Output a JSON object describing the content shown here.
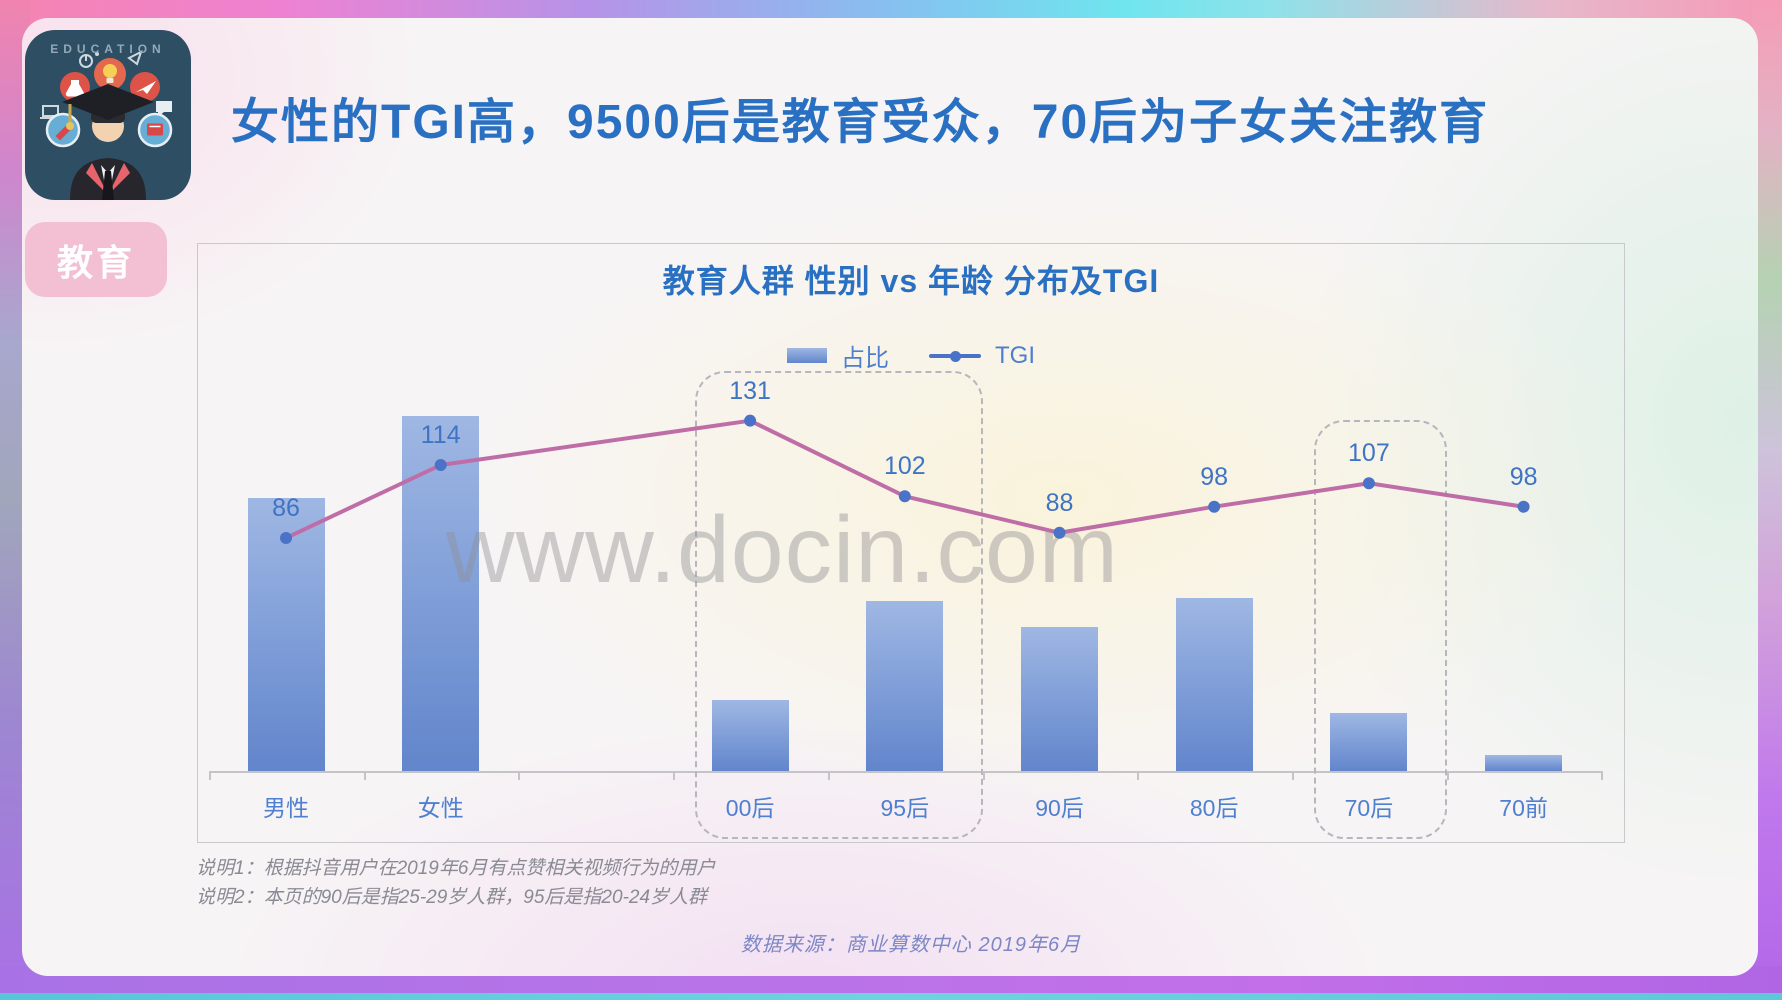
{
  "slide": {
    "app_icon_label": "EDUCATION",
    "badge": "教育",
    "title": "女性的TGI高，9500后是教育受众，70后为子女关注教育",
    "watermark": "www.docin.com",
    "notes": [
      "说明1：根据抖音用户在2019年6月有点赞相关视频行为的用户",
      "说明2：本页的90后是指25-29岁人群，95后是指20-24岁人群"
    ],
    "source": "数据来源：商业算数中心  2019年6月"
  },
  "chart_data": {
    "type": "bar",
    "combo": "bar+line",
    "title": "教育人群 性别 vs 年龄 分布及TGI",
    "categories": [
      "男性",
      "女性",
      "00后",
      "95后",
      "90后",
      "80后",
      "70后",
      "70前"
    ],
    "series": [
      {
        "name": "占比",
        "type": "bar",
        "unit": "%",
        "values_estimated": true,
        "values": [
          43.5,
          56.5,
          11.3,
          27.1,
          23.0,
          27.5,
          9.2,
          2.5
        ]
      },
      {
        "name": "TGI",
        "type": "line",
        "values": [
          86,
          114,
          131,
          102,
          88,
          98,
          107,
          98
        ]
      }
    ],
    "value_labels_shown_for": "TGI",
    "highlight_boxes": [
      {
        "categories": [
          "00后",
          "95后"
        ]
      },
      {
        "categories": [
          "70后"
        ]
      }
    ],
    "legend": [
      "占比",
      "TGI"
    ],
    "legend_position": "top",
    "grid": false,
    "group_gap_after": "女性"
  },
  "colors": {
    "headline_text": "#2a70c2",
    "bar_gradient_top": "#9fb7e3",
    "bar_gradient_bottom": "#6285cb",
    "tgi_line": "#bf6da6",
    "tgi_dot": "#4a72c6",
    "value_label": "#3f74c5",
    "axis_label": "#4f80cf",
    "badge_bg": "#f2bfd3",
    "badge_text": "#ffffff",
    "icon_bg": "#2e4e63",
    "bottom_strip": "#57c6d8"
  }
}
